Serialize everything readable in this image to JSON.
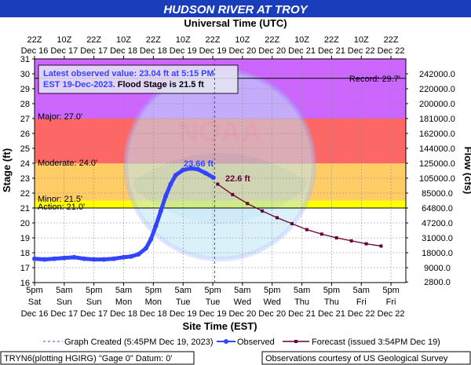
{
  "header": {
    "title": "HUDSON RIVER AT TROY",
    "top_axis_title": "Universal Time (UTC)",
    "bottom_axis_title": "Site Time (EST)",
    "y_left_label": "Stage (ft)",
    "y_right_label": "Flow (cfs)"
  },
  "info_box": {
    "line1": "Latest observed value: 23.04 ft at 5:15 PM",
    "line2a": "EST 19-Dec-2023.",
    "line2b": " Flood Stage is 21.5 ft"
  },
  "thresholds": {
    "record_label": "Record: 29.7'",
    "major_label": "Major: 27.0'",
    "moderate_label": "Moderate: 24.0'",
    "minor_label": "Minor: 21.5'",
    "action_label": "Action: 21.0'"
  },
  "annotations": {
    "peak_label": "23.66 ft",
    "forecast_start_label": "22.6 ft"
  },
  "legend": {
    "graph_created": "Graph Created (5:45PM Dec 19, 2023)",
    "observed": "Observed",
    "forecast": "Forecast (issued 3:54PM Dec 19)"
  },
  "footer": {
    "left": "TRYN6(plotting HGIRG) \"Gage 0\" Datum: 0'",
    "right": "Observations courtesy of US Geological Survey"
  },
  "colors": {
    "title_bg": "#1a3dbb",
    "action_band": "#ffff00",
    "minor_band": "#ffcc66",
    "moderate_band": "#ff6666",
    "major_band": "#cc66ff",
    "observed": "#3344ff",
    "forecast": "#660033"
  },
  "chart_data": {
    "type": "line",
    "ylim": [
      16,
      31
    ],
    "y_ticks": [
      "16",
      "17",
      "18",
      "19",
      "20",
      "21",
      "22",
      "23",
      "24",
      "25",
      "26",
      "27",
      "28",
      "29",
      "30",
      "31"
    ],
    "flow_ticks": [
      {
        "stage": 17,
        "label": "9000.0"
      },
      {
        "stage": 18,
        "label": "18000.0"
      },
      {
        "stage": 19,
        "label": "31000.0"
      },
      {
        "stage": 20,
        "label": "47200.0"
      },
      {
        "stage": 21,
        "label": "64800.0"
      },
      {
        "stage": 22,
        "label": "85000.0"
      },
      {
        "stage": 23,
        "label": "105000.0"
      },
      {
        "stage": 24,
        "label": "125000.0"
      },
      {
        "stage": 25,
        "label": "144000.0"
      },
      {
        "stage": 26,
        "label": "162000.0"
      },
      {
        "stage": 27,
        "label": "181000.0"
      },
      {
        "stage": 28,
        "label": "200000.0"
      },
      {
        "stage": 29,
        "label": "220000.0"
      },
      {
        "stage": 30,
        "label": "242000.0"
      },
      {
        "stage": 16.04,
        "label": "2800.0"
      }
    ],
    "x_ticks_bottom": [
      {
        "time": "2023-12-16 17:00",
        "l1": "5pm",
        "l2": "Sat",
        "l3": "Dec 16"
      },
      {
        "time": "2023-12-17 05:00",
        "l1": "5am",
        "l2": "Sun",
        "l3": "Dec 17"
      },
      {
        "time": "2023-12-17 17:00",
        "l1": "5pm",
        "l2": "Sun",
        "l3": "Dec 17"
      },
      {
        "time": "2023-12-18 05:00",
        "l1": "5am",
        "l2": "Mon",
        "l3": "Dec 18"
      },
      {
        "time": "2023-12-18 17:00",
        "l1": "5pm",
        "l2": "Mon",
        "l3": "Dec 18"
      },
      {
        "time": "2023-12-19 05:00",
        "l1": "5am",
        "l2": "Tue",
        "l3": "Dec 19"
      },
      {
        "time": "2023-12-19 17:00",
        "l1": "5pm",
        "l2": "Tue",
        "l3": "Dec 19"
      },
      {
        "time": "2023-12-20 05:00",
        "l1": "5am",
        "l2": "Wed",
        "l3": "Dec 20"
      },
      {
        "time": "2023-12-20 17:00",
        "l1": "5pm",
        "l2": "Wed",
        "l3": "Dec 20"
      },
      {
        "time": "2023-12-21 05:00",
        "l1": "5am",
        "l2": "Thu",
        "l3": "Dec 21"
      },
      {
        "time": "2023-12-21 17:00",
        "l1": "5pm",
        "l2": "Thu",
        "l3": "Dec 21"
      },
      {
        "time": "2023-12-22 05:00",
        "l1": "5am",
        "l2": "Fri",
        "l3": "Dec 22"
      },
      {
        "time": "2023-12-22 17:00",
        "l1": "5pm",
        "l2": "Fri",
        "l3": "Dec 22"
      }
    ],
    "x_ticks_top": [
      {
        "time": "2023-12-16 17:00",
        "l1": "22Z",
        "l2": "Dec 16"
      },
      {
        "time": "2023-12-17 05:00",
        "l1": "10Z",
        "l2": "Dec 17"
      },
      {
        "time": "2023-12-17 17:00",
        "l1": "22Z",
        "l2": "Dec 17"
      },
      {
        "time": "2023-12-18 05:00",
        "l1": "10Z",
        "l2": "Dec 18"
      },
      {
        "time": "2023-12-18 17:00",
        "l1": "22Z",
        "l2": "Dec 18"
      },
      {
        "time": "2023-12-19 05:00",
        "l1": "10Z",
        "l2": "Dec 19"
      },
      {
        "time": "2023-12-19 17:00",
        "l1": "22Z",
        "l2": "Dec 19"
      },
      {
        "time": "2023-12-20 05:00",
        "l1": "10Z",
        "l2": "Dec 20"
      },
      {
        "time": "2023-12-20 17:00",
        "l1": "22Z",
        "l2": "Dec 20"
      },
      {
        "time": "2023-12-21 05:00",
        "l1": "10Z",
        "l2": "Dec 21"
      },
      {
        "time": "2023-12-21 17:00",
        "l1": "22Z",
        "l2": "Dec 21"
      },
      {
        "time": "2023-12-22 05:00",
        "l1": "10Z",
        "l2": "Dec 22"
      },
      {
        "time": "2023-12-22 17:00",
        "l1": "22Z",
        "l2": "Dec 22"
      }
    ],
    "thresholds": {
      "record": 29.7,
      "major": 27.0,
      "moderate": 24.0,
      "minor": 21.5,
      "action": 21.0
    },
    "graph_created_time": "2023-12-19 17:45",
    "observed": [
      {
        "time": "2023-12-16 17:00",
        "stage": 17.6
      },
      {
        "time": "2023-12-16 21:00",
        "stage": 17.55
      },
      {
        "time": "2023-12-17 01:00",
        "stage": 17.6
      },
      {
        "time": "2023-12-17 05:00",
        "stage": 17.65
      },
      {
        "time": "2023-12-17 09:00",
        "stage": 17.7
      },
      {
        "time": "2023-12-17 13:00",
        "stage": 17.6
      },
      {
        "time": "2023-12-17 17:00",
        "stage": 17.55
      },
      {
        "time": "2023-12-17 21:00",
        "stage": 17.55
      },
      {
        "time": "2023-12-18 01:00",
        "stage": 17.6
      },
      {
        "time": "2023-12-18 05:00",
        "stage": 17.7
      },
      {
        "time": "2023-12-18 08:00",
        "stage": 17.75
      },
      {
        "time": "2023-12-18 11:00",
        "stage": 17.9
      },
      {
        "time": "2023-12-18 14:00",
        "stage": 18.3
      },
      {
        "time": "2023-12-18 16:00",
        "stage": 18.9
      },
      {
        "time": "2023-12-18 18:00",
        "stage": 19.8
      },
      {
        "time": "2023-12-18 20:00",
        "stage": 20.8
      },
      {
        "time": "2023-12-18 22:00",
        "stage": 21.8
      },
      {
        "time": "2023-12-19 00:00",
        "stage": 22.6
      },
      {
        "time": "2023-12-19 02:00",
        "stage": 23.2
      },
      {
        "time": "2023-12-19 05:00",
        "stage": 23.55
      },
      {
        "time": "2023-12-19 08:00",
        "stage": 23.66
      },
      {
        "time": "2023-12-19 11:00",
        "stage": 23.6
      },
      {
        "time": "2023-12-19 14:00",
        "stage": 23.35
      },
      {
        "time": "2023-12-19 17:15",
        "stage": 23.04
      }
    ],
    "forecast": [
      {
        "time": "2023-12-19 19:00",
        "stage": 22.6
      },
      {
        "time": "2023-12-20 01:00",
        "stage": 21.9
      },
      {
        "time": "2023-12-20 07:00",
        "stage": 21.3
      },
      {
        "time": "2023-12-20 13:00",
        "stage": 20.8
      },
      {
        "time": "2023-12-20 19:00",
        "stage": 20.35
      },
      {
        "time": "2023-12-21 01:00",
        "stage": 19.95
      },
      {
        "time": "2023-12-21 07:00",
        "stage": 19.55
      },
      {
        "time": "2023-12-21 13:00",
        "stage": 19.25
      },
      {
        "time": "2023-12-21 19:00",
        "stage": 19.0
      },
      {
        "time": "2023-12-22 01:00",
        "stage": 18.8
      },
      {
        "time": "2023-12-22 07:00",
        "stage": 18.6
      },
      {
        "time": "2023-12-22 13:00",
        "stage": 18.45
      }
    ]
  }
}
